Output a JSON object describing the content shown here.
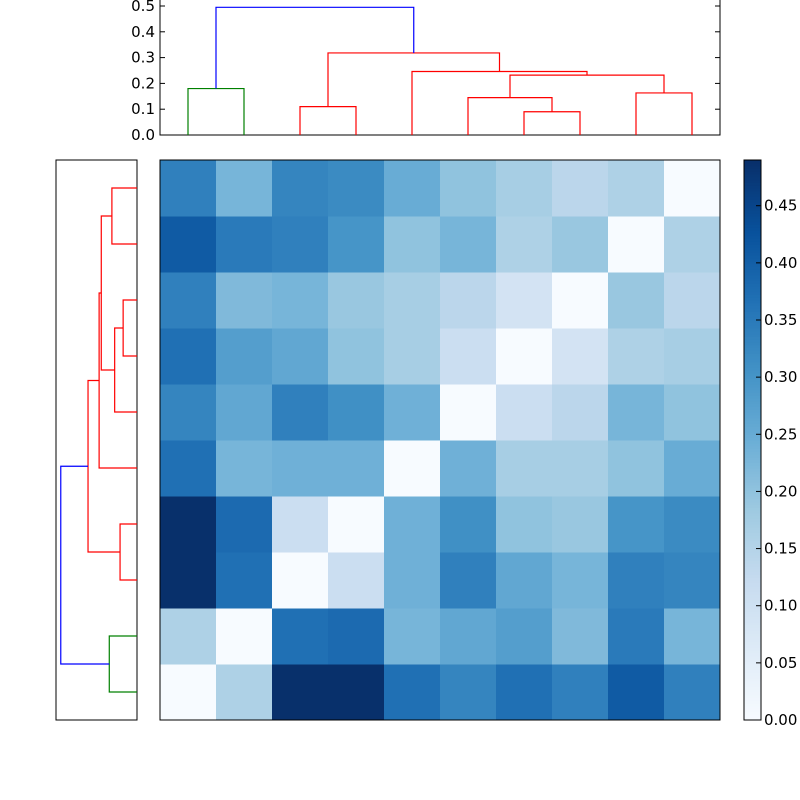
{
  "chart_data": [
    {
      "type": "dendrogram",
      "orientation": "top",
      "ylim": [
        0,
        0.5
      ],
      "yticks": [
        "0.0",
        "0.1",
        "0.2",
        "0.3",
        "0.4",
        "0.5"
      ],
      "ytick_values": [
        0,
        0.1,
        0.2,
        0.3,
        0.4,
        0.5
      ],
      "leaf_count": 10,
      "links": [
        {
          "leaves": [
            0,
            1
          ],
          "height": 0.18,
          "color": "#008000"
        },
        {
          "leaves": [
            2,
            3
          ],
          "height": 0.11,
          "color": "#ff0000"
        },
        {
          "leaves": [
            6,
            7
          ],
          "height": 0.09,
          "color": "#ff0000"
        },
        {
          "leaves": [
            5,
            6.5
          ],
          "height": 0.145,
          "color": "#ff0000"
        },
        {
          "leaves": [
            8,
            9
          ],
          "height": 0.163,
          "color": "#ff0000"
        },
        {
          "leaves": [
            5.75,
            8.5
          ],
          "height": 0.232,
          "color": "#ff0000"
        },
        {
          "leaves": [
            4,
            7.125
          ],
          "height": 0.246,
          "color": "#ff0000"
        },
        {
          "leaves": [
            2.5,
            5.5625
          ],
          "height": 0.318,
          "color": "#ff0000"
        },
        {
          "leaves": [
            0.5,
            4.03125
          ],
          "height": 0.495,
          "color": "#0000ff"
        }
      ]
    },
    {
      "type": "dendrogram",
      "orientation": "left",
      "xlim": [
        0,
        0.5
      ],
      "leaf_count": 10,
      "links": [
        {
          "leaves": [
            0,
            1
          ],
          "height": 0.18,
          "color": "#008000"
        },
        {
          "leaves": [
            2,
            3
          ],
          "height": 0.11,
          "color": "#ff0000"
        },
        {
          "leaves": [
            6,
            7
          ],
          "height": 0.09,
          "color": "#ff0000"
        },
        {
          "leaves": [
            5,
            6.5
          ],
          "height": 0.145,
          "color": "#ff0000"
        },
        {
          "leaves": [
            8,
            9
          ],
          "height": 0.163,
          "color": "#ff0000"
        },
        {
          "leaves": [
            5.75,
            8.5
          ],
          "height": 0.232,
          "color": "#ff0000"
        },
        {
          "leaves": [
            4,
            7.125
          ],
          "height": 0.246,
          "color": "#ff0000"
        },
        {
          "leaves": [
            2.5,
            5.5625
          ],
          "height": 0.318,
          "color": "#ff0000"
        },
        {
          "leaves": [
            0.5,
            4.03125
          ],
          "height": 0.495,
          "color": "#0000ff"
        }
      ]
    },
    {
      "type": "heatmap",
      "rows": 10,
      "cols": 10,
      "row_order": "bottom-to-top",
      "values": [
        [
          0.0,
          0.16,
          0.49,
          0.49,
          0.37,
          0.33,
          0.37,
          0.34,
          0.41,
          0.34
        ],
        [
          0.16,
          0.0,
          0.37,
          0.38,
          0.23,
          0.26,
          0.28,
          0.22,
          0.35,
          0.23
        ],
        [
          0.49,
          0.37,
          0.0,
          0.11,
          0.24,
          0.34,
          0.26,
          0.23,
          0.34,
          0.33
        ],
        [
          0.49,
          0.38,
          0.11,
          0.0,
          0.24,
          0.31,
          0.2,
          0.19,
          0.3,
          0.32
        ],
        [
          0.37,
          0.23,
          0.24,
          0.24,
          0.0,
          0.24,
          0.17,
          0.17,
          0.2,
          0.25
        ],
        [
          0.33,
          0.26,
          0.34,
          0.31,
          0.24,
          0.0,
          0.11,
          0.14,
          0.23,
          0.2
        ],
        [
          0.37,
          0.28,
          0.26,
          0.2,
          0.17,
          0.11,
          0.0,
          0.09,
          0.16,
          0.17
        ],
        [
          0.34,
          0.22,
          0.23,
          0.19,
          0.17,
          0.14,
          0.09,
          0.0,
          0.19,
          0.14
        ],
        [
          0.41,
          0.35,
          0.34,
          0.3,
          0.2,
          0.23,
          0.16,
          0.19,
          0.0,
          0.16
        ],
        [
          0.34,
          0.23,
          0.33,
          0.32,
          0.25,
          0.2,
          0.17,
          0.14,
          0.16,
          0.0
        ]
      ],
      "vmin": 0,
      "vmax": 0.49,
      "colormap": "Blues",
      "colormap_stops": [
        "#f7fbff",
        "#deebf7",
        "#c6dbef",
        "#9ecae1",
        "#6baed6",
        "#4292c6",
        "#2171b5",
        "#08519c",
        "#08306b"
      ],
      "colorbar_ticks": [
        "0.00",
        "0.05",
        "0.10",
        "0.15",
        "0.20",
        "0.25",
        "0.30",
        "0.35",
        "0.40",
        "0.45"
      ],
      "colorbar_tick_values": [
        0,
        0.05,
        0.1,
        0.15,
        0.2,
        0.25,
        0.3,
        0.35,
        0.4,
        0.45
      ]
    }
  ]
}
